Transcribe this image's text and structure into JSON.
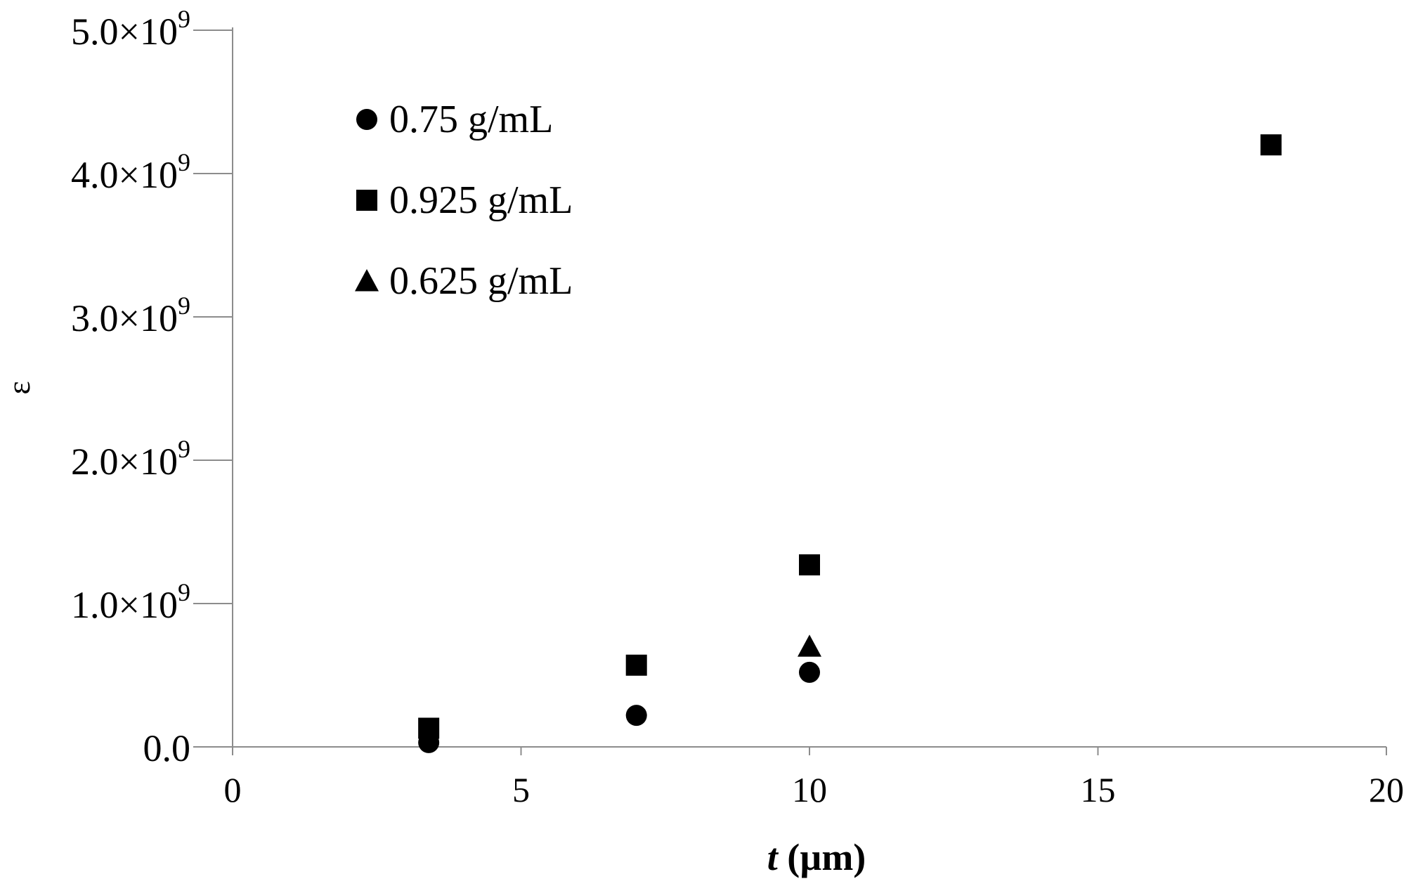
{
  "chart_data": {
    "type": "scatter",
    "title": "",
    "xlabel": {
      "italic": "t",
      "rest": " (µm)"
    },
    "ylabel": "ε",
    "xlim": [
      0,
      20
    ],
    "ylim": [
      0,
      5000000000
    ],
    "x_ticks": [
      {
        "value": 0,
        "label": "0"
      },
      {
        "value": 5,
        "label": "5"
      },
      {
        "value": 10,
        "label": "10"
      },
      {
        "value": 15,
        "label": "15"
      },
      {
        "value": 20,
        "label": "20"
      }
    ],
    "y_ticks": [
      {
        "value": 0,
        "mantissa": "0.0",
        "exp": ""
      },
      {
        "value": 1000000000,
        "mantissa": "1.0×10",
        "exp": "9"
      },
      {
        "value": 2000000000,
        "mantissa": "2.0×10",
        "exp": "9"
      },
      {
        "value": 3000000000,
        "mantissa": "3.0×10",
        "exp": "9"
      },
      {
        "value": 4000000000,
        "mantissa": "4.0×10",
        "exp": "9"
      },
      {
        "value": 5000000000,
        "mantissa": "5.0×10",
        "exp": "9"
      }
    ],
    "grid": false,
    "legend_position": "top-left",
    "series": [
      {
        "name": "0.75 g/mL",
        "marker": "circle",
        "color": "#000000",
        "points": [
          {
            "x": 3.4,
            "y": 30000000
          },
          {
            "x": 7.0,
            "y": 220000000
          },
          {
            "x": 10.0,
            "y": 520000000
          }
        ]
      },
      {
        "name": "0.925 g/mL",
        "marker": "square",
        "color": "#000000",
        "points": [
          {
            "x": 3.4,
            "y": 130000000
          },
          {
            "x": 7.0,
            "y": 570000000
          },
          {
            "x": 10.0,
            "y": 1270000000
          },
          {
            "x": 18.0,
            "y": 4200000000
          }
        ]
      },
      {
        "name": "0.625 g/mL",
        "marker": "triangle",
        "color": "#000000",
        "points": [
          {
            "x": 10.0,
            "y": 700000000
          }
        ]
      }
    ]
  }
}
